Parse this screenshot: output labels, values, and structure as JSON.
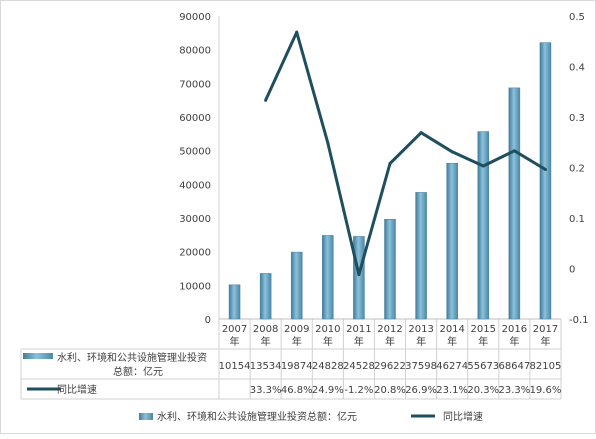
{
  "chart_data": {
    "type": "bar+line",
    "title": "",
    "categories": [
      "2007年",
      "2008年",
      "2009年",
      "2010年",
      "2011年",
      "2012年",
      "2013年",
      "2014年",
      "2015年",
      "2016年",
      "2017年"
    ],
    "category_lines": [
      [
        "2007",
        "年"
      ],
      [
        "2008",
        "年"
      ],
      [
        "2009",
        "年"
      ],
      [
        "2010",
        "年"
      ],
      [
        "2011",
        "年"
      ],
      [
        "2012",
        "年"
      ],
      [
        "2013",
        "年"
      ],
      [
        "2014",
        "年"
      ],
      [
        "2015",
        "年"
      ],
      [
        "2016",
        "年"
      ],
      [
        "2017",
        "年"
      ]
    ],
    "series": [
      {
        "name": "水利、环境和公共设施管理业投资总额：亿元",
        "type": "bar",
        "axis": "left",
        "values": [
          10154,
          13534,
          19874,
          24828,
          24528,
          29622,
          37598,
          46274,
          55673,
          68647,
          82105
        ],
        "table_values": [
          "10154",
          "13534",
          "19874",
          "24828",
          "24528",
          "29622",
          "37598",
          "46274",
          "55673",
          "68647",
          "82105"
        ],
        "color": "#5b9bbd"
      },
      {
        "name": "同比增速",
        "type": "line",
        "axis": "right",
        "values": [
          null,
          0.333,
          0.468,
          0.249,
          -0.012,
          0.208,
          0.269,
          0.231,
          0.203,
          0.233,
          0.196
        ],
        "table_values": [
          "",
          "33.3%",
          "46.8%",
          "24.9%",
          "-1.2%",
          "20.8%",
          "26.9%",
          "23.1%",
          "20.3%",
          "23.3%",
          "19.6%"
        ],
        "color": "#1f4e5f"
      }
    ],
    "table_labels": [
      [
        "水利、环境和公共设施管理业投资",
        "总额：亿元"
      ],
      [
        "同比增速"
      ]
    ],
    "y_left": {
      "min": 0,
      "max": 90000,
      "ticks": [
        "0",
        "10000",
        "20000",
        "30000",
        "40000",
        "50000",
        "60000",
        "70000",
        "80000",
        "90000"
      ]
    },
    "y_right": {
      "min": -0.1,
      "max": 0.5,
      "ticks": [
        "-0.1",
        "0",
        "0.1",
        "0.2",
        "0.3",
        "0.4",
        "0.5"
      ]
    },
    "legend": {
      "position": "bottom",
      "items": [
        "水利、环境和公共设施管理业投资总额：亿元",
        "同比增速"
      ]
    },
    "data_table": true,
    "grid": true
  }
}
